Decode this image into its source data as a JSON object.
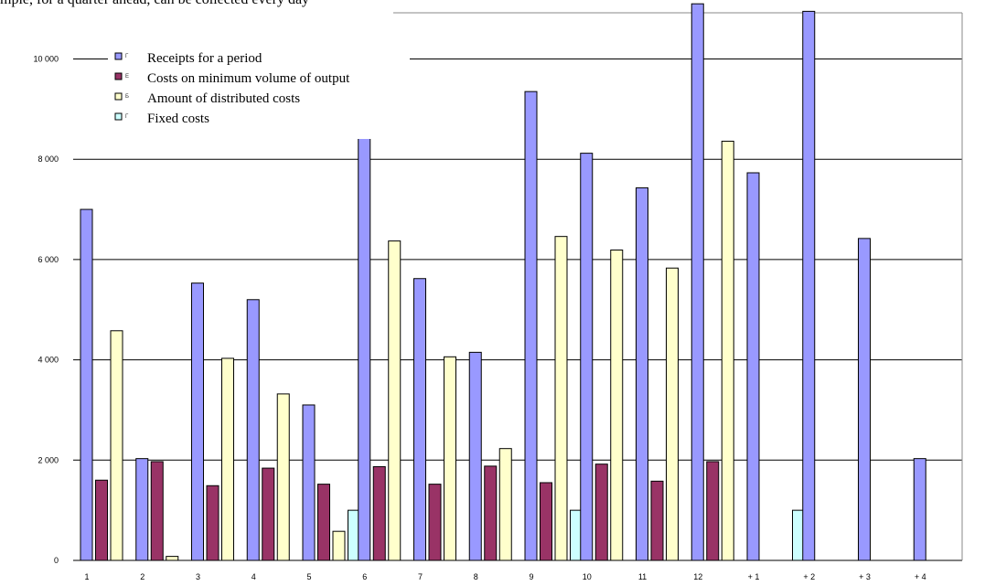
{
  "caption": "mple, for a quarter ahead, can be collected every day",
  "chart_data": {
    "type": "bar",
    "categories": [
      "1",
      "2",
      "3",
      "4",
      "5",
      "6",
      "7",
      "8",
      "9",
      "10",
      "11",
      "12",
      "+ 1",
      "+ 2",
      "+ 3",
      "+ 4"
    ],
    "ylim": [
      0,
      11000
    ],
    "yticks": [
      0,
      2000,
      4000,
      6000,
      8000,
      10000
    ],
    "ytick_labels": [
      "0",
      "2 000",
      "4 000",
      "6 000",
      "8 000",
      "10 000"
    ],
    "grid": true,
    "legend_position": "top-left",
    "series": [
      {
        "name": "Receipts for a period",
        "code": "Г",
        "color": "#9999ff",
        "values": [
          7000,
          2030,
          5530,
          5200,
          3100,
          8450,
          5620,
          4150,
          9350,
          8120,
          7430,
          11100,
          7730,
          10950,
          6420,
          2030
        ]
      },
      {
        "name": "Costs on minimum volume of output",
        "code": "Е",
        "color": "#993366",
        "values": [
          1600,
          1970,
          1490,
          1840,
          1520,
          1870,
          1520,
          1880,
          1550,
          1920,
          1580,
          1970,
          0,
          0,
          0,
          0
        ]
      },
      {
        "name": "Amount of distributed costs",
        "code": "Б",
        "color": "#ffffcc",
        "values": [
          4580,
          80,
          4030,
          3320,
          580,
          6370,
          4060,
          2230,
          6460,
          6190,
          5830,
          8360,
          0,
          0,
          0,
          0
        ]
      },
      {
        "name": "Fixed costs",
        "code": "Г",
        "color": "#ccffff",
        "values": [
          0,
          0,
          0,
          0,
          1000,
          0,
          0,
          0,
          1000,
          0,
          0,
          0,
          1000,
          0,
          0,
          0
        ]
      }
    ]
  }
}
